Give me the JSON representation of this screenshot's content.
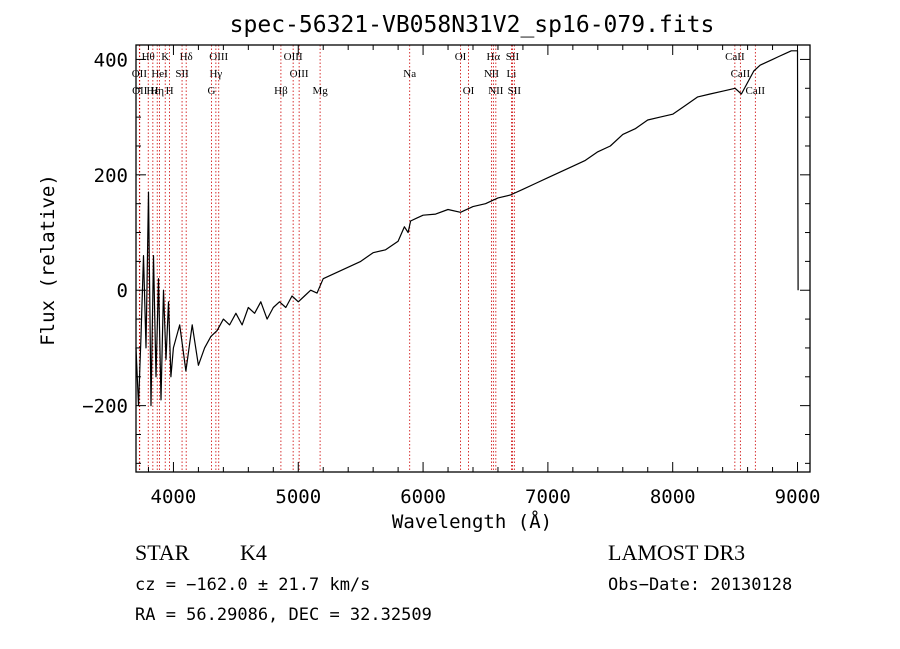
{
  "chart_data": {
    "type": "line",
    "title": "spec-56321-VB058N31V2_sp16-079.fits",
    "xlabel": "Wavelength (Å)",
    "ylabel": "Flux (relative)",
    "xlim": [
      3700,
      9100
    ],
    "ylim": [
      -315,
      425
    ],
    "xticks": [
      4000,
      5000,
      6000,
      7000,
      8000,
      9000
    ],
    "xtick_labels": [
      "4000",
      "5000",
      "6000",
      "7000",
      "8000",
      "9000"
    ],
    "yticks": [
      -200,
      0,
      200,
      400
    ],
    "ytick_labels": [
      "−200",
      "0",
      "200",
      "400"
    ],
    "series": [
      {
        "name": "spectrum",
        "x": [
          3700,
          3720,
          3740,
          3760,
          3780,
          3800,
          3820,
          3840,
          3860,
          3880,
          3900,
          3920,
          3940,
          3960,
          3980,
          4000,
          4050,
          4100,
          4150,
          4200,
          4250,
          4300,
          4350,
          4400,
          4450,
          4500,
          4550,
          4600,
          4650,
          4700,
          4750,
          4800,
          4850,
          4900,
          4950,
          5000,
          5050,
          5100,
          5150,
          5200,
          5300,
          5400,
          5500,
          5600,
          5700,
          5800,
          5850,
          5880,
          5900,
          5950,
          6000,
          6100,
          6200,
          6300,
          6400,
          6500,
          6600,
          6700,
          6800,
          6900,
          7000,
          7100,
          7200,
          7300,
          7400,
          7500,
          7600,
          7700,
          7800,
          7900,
          8000,
          8100,
          8200,
          8300,
          8400,
          8500,
          8550,
          8600,
          8650,
          8700,
          8750,
          8800,
          8850,
          8900,
          8950,
          9000,
          9005
        ],
        "y": [
          -100,
          -200,
          -80,
          60,
          -100,
          170,
          -200,
          60,
          -150,
          20,
          -190,
          0,
          -120,
          -20,
          -150,
          -100,
          -60,
          -140,
          -60,
          -130,
          -100,
          -80,
          -70,
          -50,
          -60,
          -40,
          -60,
          -30,
          -40,
          -20,
          -50,
          -30,
          -20,
          -30,
          -10,
          -20,
          -10,
          0,
          -5,
          20,
          30,
          40,
          50,
          65,
          70,
          85,
          110,
          100,
          120,
          125,
          130,
          132,
          140,
          135,
          145,
          150,
          160,
          165,
          175,
          185,
          195,
          205,
          215,
          225,
          240,
          250,
          270,
          280,
          295,
          300,
          305,
          320,
          335,
          340,
          345,
          350,
          340,
          360,
          380,
          390,
          395,
          400,
          405,
          410,
          415,
          415,
          0
        ]
      }
    ],
    "line_markers": [
      {
        "label": "Hθ",
        "x": 3798,
        "row": 1
      },
      {
        "label": "OII",
        "x": 3727,
        "row": 2
      },
      {
        "label": "OII",
        "x": 3730,
        "row": 3
      },
      {
        "label": "Hε",
        "x": 3835,
        "row": 3
      },
      {
        "label": "K",
        "x": 3934,
        "row": 1
      },
      {
        "label": "HeI",
        "x": 3889,
        "row": 2
      },
      {
        "label": "Hη",
        "x": 3870,
        "row": 3
      },
      {
        "label": "H",
        "x": 3969,
        "row": 3
      },
      {
        "label": "Hδ",
        "x": 4102,
        "row": 1
      },
      {
        "label": "SII",
        "x": 4069,
        "row": 2
      },
      {
        "label": "OIII",
        "x": 4363,
        "row": 1
      },
      {
        "label": "Hγ",
        "x": 4340,
        "row": 2
      },
      {
        "label": "G",
        "x": 4305,
        "row": 3
      },
      {
        "label": "OIII",
        "x": 4959,
        "row": 1
      },
      {
        "label": "OIII",
        "x": 5007,
        "row": 2
      },
      {
        "label": "Hβ",
        "x": 4861,
        "row": 3
      },
      {
        "label": "Mg",
        "x": 5175,
        "row": 3
      },
      {
        "label": "Na",
        "x": 5893,
        "row": 2
      },
      {
        "label": "OI",
        "x": 6300,
        "row": 1
      },
      {
        "label": "OI",
        "x": 6364,
        "row": 3
      },
      {
        "label": "Hα",
        "x": 6563,
        "row": 1
      },
      {
        "label": "NII",
        "x": 6548,
        "row": 2
      },
      {
        "label": "NII",
        "x": 6583,
        "row": 3
      },
      {
        "label": "SII",
        "x": 6716,
        "row": 1
      },
      {
        "label": "Li",
        "x": 6708,
        "row": 2
      },
      {
        "label": "SII",
        "x": 6731,
        "row": 3
      },
      {
        "label": "CaII",
        "x": 8498,
        "row": 1
      },
      {
        "label": "CaII",
        "x": 8542,
        "row": 2
      },
      {
        "label": "CaII",
        "x": 8662,
        "row": 3
      }
    ],
    "legend": null,
    "grid": false
  },
  "info": {
    "object_class": "STAR",
    "subclass": "K4",
    "survey": "LAMOST DR3",
    "redshift": "cz = −162.0 ± 21.7 km/s",
    "obs_date": "Obs−Date: 20130128",
    "coords": "RA =  56.29086, DEC =  32.32509"
  },
  "colors": {
    "line": "#000000",
    "marker": "#cc0000",
    "background": "#ffffff"
  }
}
